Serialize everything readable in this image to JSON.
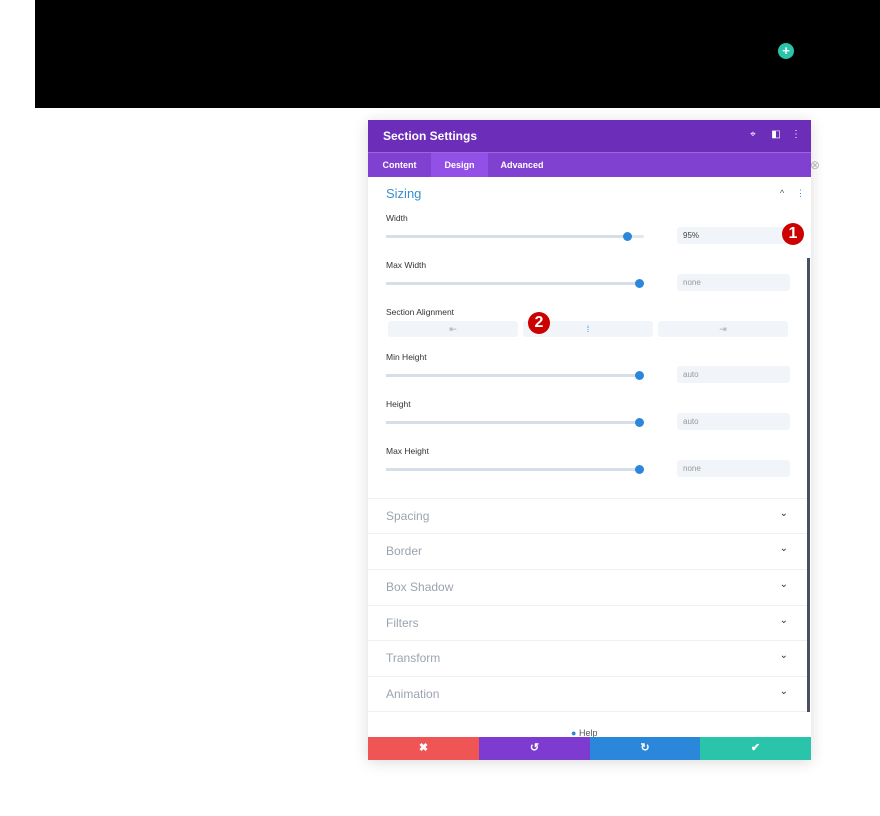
{
  "banner": {
    "add_icon": "plus-icon"
  },
  "panel": {
    "title": "Section Settings",
    "header_icons": [
      "fullscreen-icon",
      "split-view-icon",
      "more-vertical-icon"
    ],
    "tabs": [
      {
        "label": "Content"
      },
      {
        "label": "Design",
        "active": true
      },
      {
        "label": "Advanced"
      }
    ],
    "sizing": {
      "title": "Sizing",
      "collapse_icon": "^",
      "more_icon": "⋮",
      "width": {
        "label": "Width",
        "value": "95%"
      },
      "max_width": {
        "label": "Max Width",
        "value": "none"
      },
      "alignment": {
        "label": "Section Alignment",
        "options": [
          "⇤",
          "⁞",
          "⇥"
        ],
        "selected": "center"
      },
      "min_height": {
        "label": "Min Height",
        "value": "auto"
      },
      "height": {
        "label": "Height",
        "value": "auto"
      },
      "max_height": {
        "label": "Max Height",
        "value": "none"
      }
    },
    "sections": [
      {
        "label": "Spacing"
      },
      {
        "label": "Border"
      },
      {
        "label": "Box Shadow"
      },
      {
        "label": "Filters"
      },
      {
        "label": "Transform"
      },
      {
        "label": "Animation"
      }
    ],
    "help": "Help",
    "footer": {
      "cancel": "✖",
      "undo": "↺",
      "redo": "↻",
      "save": "✔"
    }
  },
  "badges": [
    "1",
    "2"
  ],
  "colors": {
    "header": "#6c2eb9",
    "tabs": "#8040d0",
    "accent": "#2b87da",
    "cancel": "#ef5555",
    "undo": "#7e3bd0",
    "redo": "#2b87da",
    "save": "#29c4a9"
  }
}
